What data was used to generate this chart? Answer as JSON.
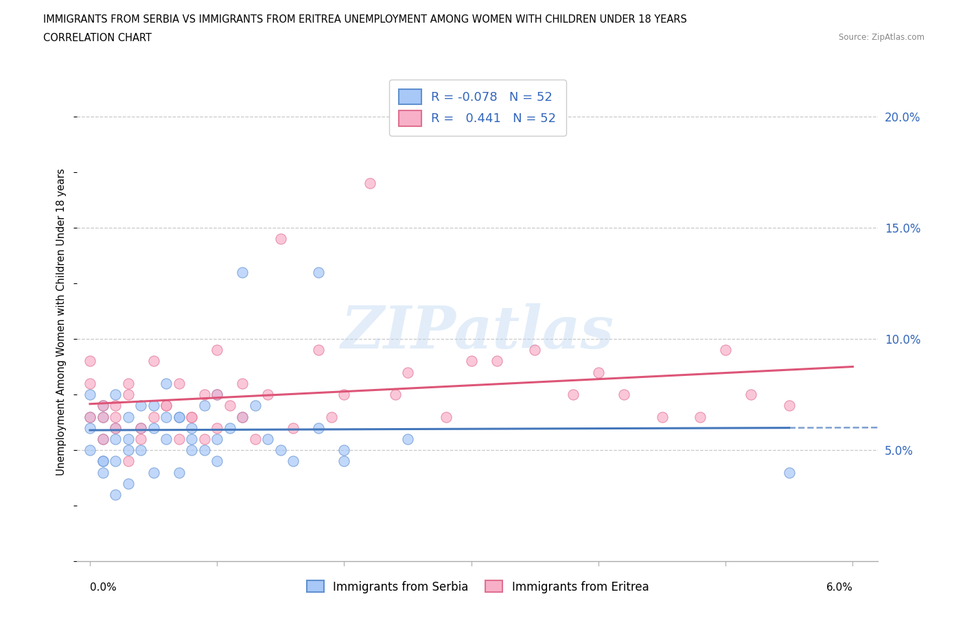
{
  "title_line1": "IMMIGRANTS FROM SERBIA VS IMMIGRANTS FROM ERITREA UNEMPLOYMENT AMONG WOMEN WITH CHILDREN UNDER 18 YEARS",
  "title_line2": "CORRELATION CHART",
  "source": "Source: ZipAtlas.com",
  "ylabel": "Unemployment Among Women with Children Under 18 years",
  "legend_serbia": "Immigrants from Serbia",
  "legend_eritrea": "Immigrants from Eritrea",
  "serbia_R": -0.078,
  "eritrea_R": 0.441,
  "N": 52,
  "serbia_color": "#a8c8f8",
  "eritrea_color": "#f8b0c8",
  "serbia_edge_color": "#6090d0",
  "eritrea_edge_color": "#e07090",
  "serbia_line_color": "#4477bb",
  "eritrea_line_color": "#dd5577",
  "x_min": 0.0,
  "x_max": 0.062,
  "y_min": 0.0,
  "y_max": 0.215,
  "y_ticks": [
    0.05,
    0.1,
    0.15,
    0.2
  ],
  "y_tick_labels": [
    "5.0%",
    "10.0%",
    "15.0%",
    "20.0%"
  ],
  "watermark": "ZIPatlas",
  "serbia_x": [
    0.001,
    0.002,
    0.003,
    0.004,
    0.005,
    0.006,
    0.007,
    0.008,
    0.009,
    0.01,
    0.001,
    0.002,
    0.003,
    0.004,
    0.005,
    0.006,
    0.007,
    0.008,
    0.009,
    0.01,
    0.0,
    0.001,
    0.002,
    0.003,
    0.004,
    0.005,
    0.0,
    0.001,
    0.002,
    0.003,
    0.0,
    0.001,
    0.002,
    0.0,
    0.001,
    0.012,
    0.015,
    0.018,
    0.02,
    0.025,
    0.01,
    0.013,
    0.016,
    0.007,
    0.011,
    0.014,
    0.008,
    0.006,
    0.02,
    0.055,
    0.012,
    0.018
  ],
  "serbia_y": [
    0.065,
    0.075,
    0.055,
    0.07,
    0.06,
    0.08,
    0.065,
    0.055,
    0.07,
    0.075,
    0.045,
    0.055,
    0.065,
    0.05,
    0.04,
    0.055,
    0.04,
    0.06,
    0.05,
    0.045,
    0.065,
    0.07,
    0.06,
    0.05,
    0.06,
    0.07,
    0.075,
    0.055,
    0.045,
    0.035,
    0.05,
    0.04,
    0.03,
    0.06,
    0.045,
    0.065,
    0.05,
    0.06,
    0.045,
    0.055,
    0.055,
    0.07,
    0.045,
    0.065,
    0.06,
    0.055,
    0.05,
    0.065,
    0.05,
    0.04,
    0.13,
    0.13
  ],
  "eritrea_x": [
    0.0,
    0.001,
    0.002,
    0.003,
    0.004,
    0.005,
    0.006,
    0.007,
    0.008,
    0.009,
    0.01,
    0.011,
    0.012,
    0.013,
    0.014,
    0.0,
    0.001,
    0.002,
    0.003,
    0.004,
    0.005,
    0.006,
    0.007,
    0.008,
    0.009,
    0.01,
    0.0,
    0.001,
    0.002,
    0.003,
    0.015,
    0.018,
    0.02,
    0.025,
    0.028,
    0.03,
    0.035,
    0.038,
    0.04,
    0.042,
    0.05,
    0.055,
    0.032,
    0.022,
    0.045,
    0.012,
    0.016,
    0.019,
    0.024,
    0.01,
    0.048,
    0.052
  ],
  "eritrea_y": [
    0.065,
    0.07,
    0.06,
    0.075,
    0.055,
    0.065,
    0.07,
    0.055,
    0.065,
    0.075,
    0.06,
    0.07,
    0.065,
    0.055,
    0.075,
    0.08,
    0.055,
    0.065,
    0.045,
    0.06,
    0.09,
    0.07,
    0.08,
    0.065,
    0.055,
    0.075,
    0.09,
    0.065,
    0.07,
    0.08,
    0.145,
    0.095,
    0.075,
    0.085,
    0.065,
    0.09,
    0.095,
    0.075,
    0.085,
    0.075,
    0.095,
    0.07,
    0.09,
    0.17,
    0.065,
    0.08,
    0.06,
    0.065,
    0.075,
    0.095,
    0.065,
    0.075
  ]
}
